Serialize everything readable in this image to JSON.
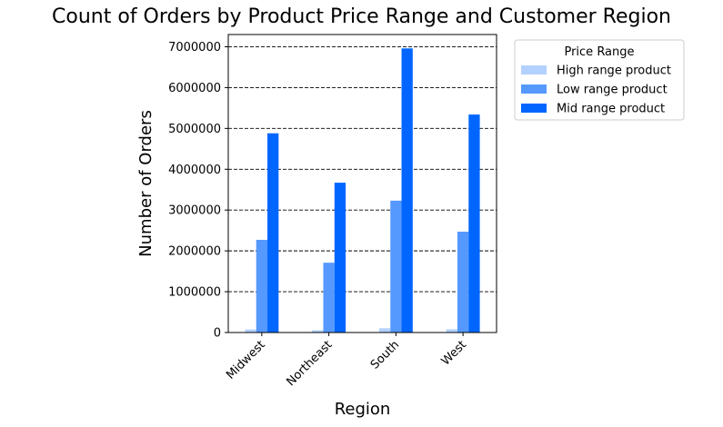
{
  "chart_data": {
    "type": "bar",
    "title": "Count of Orders by Product Price Range and Customer Region",
    "xlabel": "Region",
    "ylabel": "Number of Orders",
    "categories": [
      "Midwest",
      "Northeast",
      "South",
      "West"
    ],
    "series": [
      {
        "name": "High range product",
        "color": "#b3d1ff",
        "values": [
          75000,
          55000,
          105000,
          80000
        ]
      },
      {
        "name": "Low range product",
        "color": "#5599ff",
        "values": [
          2270000,
          1710000,
          3230000,
          2470000
        ]
      },
      {
        "name": "Mid range product",
        "color": "#0066ff",
        "values": [
          4880000,
          3670000,
          6960000,
          5340000
        ]
      }
    ],
    "ylim": [
      0,
      7300000
    ],
    "yticks": [
      0,
      1000000,
      2000000,
      3000000,
      4000000,
      5000000,
      6000000,
      7000000
    ],
    "ytick_labels": [
      "0",
      "1000000",
      "2000000",
      "3000000",
      "4000000",
      "5000000",
      "6000000",
      "7000000"
    ],
    "grid": "y dashed",
    "legend": {
      "title": "Price Range",
      "placement": "outside-right-top"
    }
  }
}
